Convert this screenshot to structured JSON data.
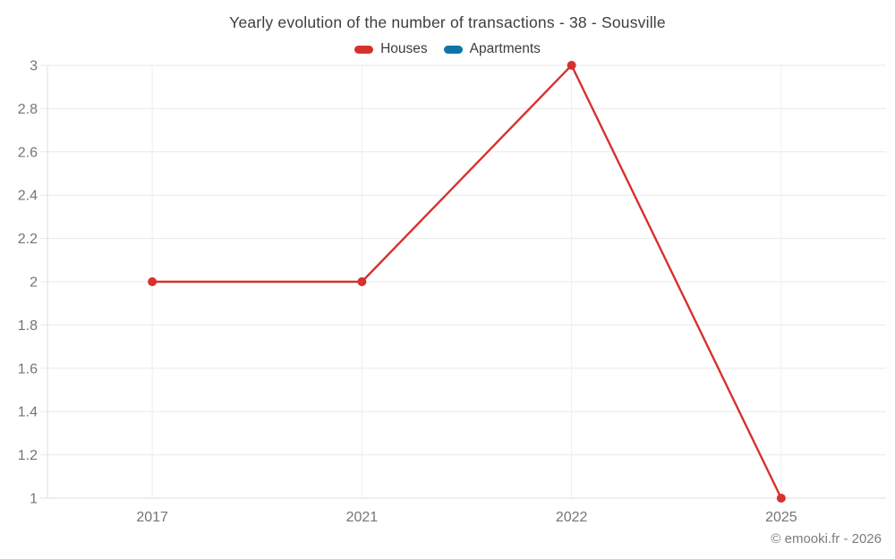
{
  "header": {
    "title": "Yearly evolution of the number of transactions - 38 - Sousville"
  },
  "footer": {
    "copyright": "© emooki.fr - 2026"
  },
  "chart_data": {
    "type": "line",
    "title": "Yearly evolution of the number of transactions - 38 - Sousville",
    "categories": [
      "2017",
      "2021",
      "2022",
      "2025"
    ],
    "series": [
      {
        "name": "Houses",
        "color": "#d7312e",
        "values": [
          2,
          2,
          3,
          1
        ]
      },
      {
        "name": "Apartments",
        "color": "#0f74a8",
        "values": []
      }
    ],
    "xlabel": "",
    "ylabel": "",
    "ylim": [
      1,
      3
    ],
    "yticks": [
      1,
      1.2,
      1.4,
      1.6,
      1.8,
      2,
      2.2,
      2.4,
      2.6,
      2.8,
      3
    ],
    "grid": true,
    "legend_position": "top",
    "marker": "circle"
  },
  "colors": {
    "background": "#ffffff",
    "grid_horizontal": "#e9e9e9",
    "grid_vertical": "#efefef",
    "axis": "#dfdfdf",
    "tick_label": "#757575",
    "title_text": "#3d3d3d",
    "footer_text": "#7c7c7c"
  }
}
